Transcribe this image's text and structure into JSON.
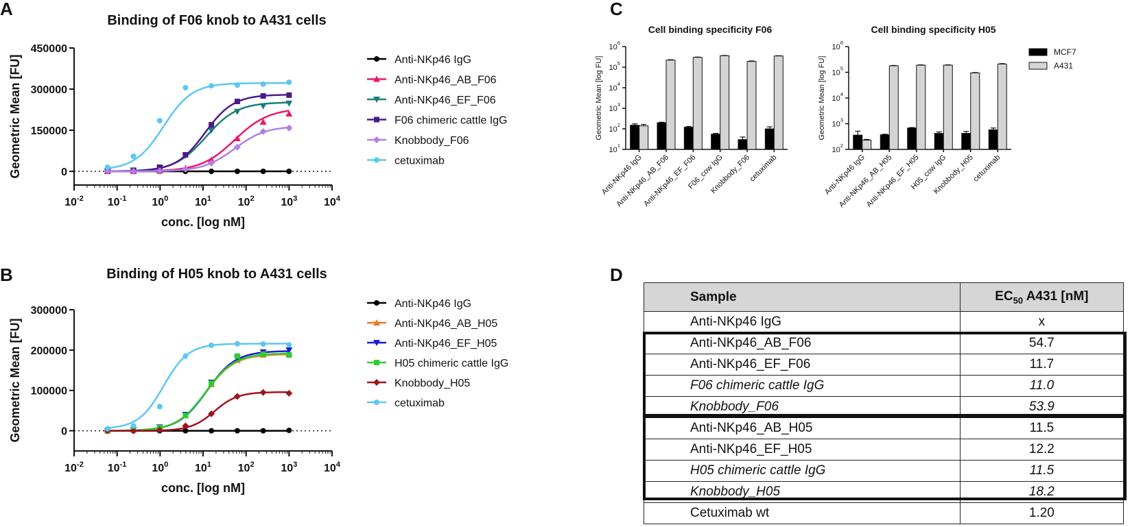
{
  "panels": {
    "A": "A",
    "B": "B",
    "C": "C",
    "D": "D"
  },
  "chart_data": [
    {
      "id": "A",
      "type": "line",
      "title": "Binding of F06 knob to A431 cells",
      "xlabel": "conc. [log nM]",
      "ylabel": "Geometric Mean [FU]",
      "xscale": "log",
      "xlim": [
        0.01,
        10000
      ],
      "ylim": [
        -50000,
        450000
      ],
      "yticks": [
        0,
        150000,
        300000,
        450000
      ],
      "ytick_labels": [
        "0",
        "150000",
        "300000",
        "450000"
      ],
      "xticks": [
        0.01,
        0.1,
        1,
        10,
        100,
        1000,
        10000
      ],
      "xtick_base": "10",
      "xtick_exps": [
        "-2",
        "-1",
        "0",
        "1",
        "2",
        "3",
        "4"
      ],
      "legend_position": "right",
      "x": [
        0.06,
        0.24,
        0.98,
        3.9,
        15.6,
        62.5,
        250,
        1000
      ],
      "series": [
        {
          "name": "Anti-NKp46 IgG",
          "color": "#000000",
          "marker": "circle",
          "values": [
            0,
            0,
            0,
            0,
            0,
            0,
            0,
            0
          ],
          "fit": {
            "bottom": 0,
            "top": 0,
            "ec50": 10,
            "hill": 1
          }
        },
        {
          "name": "Anti-NKp46_AB_F06",
          "color": "#e8196a",
          "marker": "triangle-up",
          "values": [
            0,
            0,
            2000,
            12000,
            42000,
            120000,
            180000,
            210000
          ],
          "fit": {
            "bottom": 0,
            "top": 230000,
            "ec50": 54.7,
            "hill": 1.1
          }
        },
        {
          "name": "Anti-NKp46_EF_F06",
          "color": "#1a7f7a",
          "marker": "triangle-down",
          "values": [
            0,
            3000,
            12000,
            58000,
            150000,
            218000,
            238000,
            248000
          ],
          "fit": {
            "bottom": 0,
            "top": 252000,
            "ec50": 11.7,
            "hill": 1.2
          }
        },
        {
          "name": "F06 chimeric cattle  IgG",
          "color": "#4b1a8a",
          "marker": "square",
          "values": [
            2000,
            4000,
            15000,
            60000,
            170000,
            255000,
            275000,
            278000
          ],
          "fit": {
            "bottom": 0,
            "top": 280000,
            "ec50": 11.0,
            "hill": 1.3
          }
        },
        {
          "name": "Knobbody_F06",
          "color": "#b07fe8",
          "marker": "diamond",
          "values": [
            0,
            0,
            2000,
            8000,
            30000,
            88000,
            145000,
            158000
          ],
          "fit": {
            "bottom": 0,
            "top": 165000,
            "ec50": 53.9,
            "hill": 1.2
          }
        },
        {
          "name": "cetuximab",
          "color": "#5bc8f0",
          "marker": "circle",
          "values": [
            15000,
            55000,
            185000,
            305000,
            312000,
            315000,
            318000,
            325000
          ],
          "fit": {
            "bottom": 5000,
            "top": 322000,
            "ec50": 1.2,
            "hill": 1.3
          }
        }
      ]
    },
    {
      "id": "B",
      "type": "line",
      "title": "Binding of H05 knob to A431 cells",
      "xlabel": "conc. [log nM]",
      "ylabel": "Geometric Mean [FU]",
      "xscale": "log",
      "xlim": [
        0.01,
        10000
      ],
      "ylim": [
        -50000,
        300000
      ],
      "yticks": [
        0,
        100000,
        200000,
        300000
      ],
      "ytick_labels": [
        "0",
        "100000",
        "200000",
        "300000"
      ],
      "xticks": [
        0.01,
        0.1,
        1,
        10,
        100,
        1000,
        10000
      ],
      "xtick_base": "10",
      "xtick_exps": [
        "-2",
        "-1",
        "0",
        "1",
        "2",
        "3",
        "4"
      ],
      "legend_position": "right",
      "x": [
        0.06,
        0.24,
        0.98,
        3.9,
        15.6,
        62.5,
        250,
        1000
      ],
      "series": [
        {
          "name": "Anti-NKp46 IgG",
          "color": "#000000",
          "marker": "circle",
          "values": [
            0,
            0,
            0,
            0,
            0,
            0,
            0,
            1000
          ],
          "fit": {
            "bottom": 0,
            "top": 0,
            "ec50": 10,
            "hill": 1
          }
        },
        {
          "name": "Anti-NKp46_AB_H05",
          "color": "#f07820",
          "marker": "triangle-up",
          "values": [
            0,
            2000,
            8000,
            38000,
            115000,
            175000,
            188000,
            190000
          ],
          "fit": {
            "bottom": 0,
            "top": 190000,
            "ec50": 11.5,
            "hill": 1.3
          }
        },
        {
          "name": "Anti-NKp46_EF_H05",
          "color": "#1a1ad8",
          "marker": "triangle-down",
          "values": [
            0,
            2000,
            9000,
            40000,
            120000,
            180000,
            195000,
            200000
          ],
          "fit": {
            "bottom": 0,
            "top": 198000,
            "ec50": 12.2,
            "hill": 1.3
          }
        },
        {
          "name": "H05 chimeric cattle IgG",
          "color": "#2ecc2e",
          "marker": "square",
          "values": [
            0,
            2000,
            8000,
            38000,
            118000,
            185000,
            190000,
            188000
          ],
          "fit": {
            "bottom": 0,
            "top": 192000,
            "ec50": 11.5,
            "hill": 1.3
          }
        },
        {
          "name": "Knobbody_H05",
          "color": "#a0141e",
          "marker": "diamond",
          "values": [
            0,
            0,
            2000,
            12000,
            42000,
            85000,
            95000,
            93000
          ],
          "fit": {
            "bottom": 0,
            "top": 96000,
            "ec50": 18.2,
            "hill": 1.6
          }
        },
        {
          "name": "cetuximab",
          "color": "#5bc8f0",
          "marker": "circle",
          "values": [
            5000,
            12000,
            60000,
            185000,
            212000,
            216000,
            215000,
            213000
          ],
          "fit": {
            "bottom": 5000,
            "top": 216000,
            "ec50": 1.2,
            "hill": 1.5
          }
        }
      ]
    },
    {
      "id": "C1",
      "type": "bar",
      "title": "Cell binding specificity F06",
      "ylabel": "Geometric Mean [log FU]",
      "yscale": "log",
      "ylim": [
        10,
        1000000
      ],
      "ytick_exps": [
        "1",
        "2",
        "3",
        "4",
        "5",
        "6"
      ],
      "categories": [
        "Anti-NKp46 IgG",
        "Anti-NKp46_AB_F06",
        "Anti-NKp46_EF_F06",
        "F06_cow IgG",
        "Knobbody_F06",
        "cetuximab"
      ],
      "series": [
        {
          "name": "MCF7",
          "color": "#000000",
          "values": [
            150,
            200,
            120,
            55,
            30,
            100
          ],
          "errors": [
            25,
            10,
            10,
            5,
            10,
            25
          ]
        },
        {
          "name": "A431",
          "color": "#d4d4d4",
          "values": [
            140,
            220000,
            300000,
            360000,
            190000,
            350000
          ],
          "errors": [
            25,
            10000,
            10000,
            10000,
            10000,
            10000
          ]
        }
      ]
    },
    {
      "id": "C2",
      "type": "bar",
      "title": "Cell binding specificity H05",
      "ylabel": "Geometric Mean [log FU]",
      "yscale": "log",
      "ylim": [
        100,
        1000000
      ],
      "ytick_exps": [
        "2",
        "3",
        "4",
        "5",
        "6"
      ],
      "legend_position": "right",
      "categories": [
        "Anti-NKp46 IgG",
        "Anti-NKp46_AB_H05",
        "Anti-NKp46_EF_H05",
        "H05_cow IgG",
        "Knobbody_H05",
        "cetuximab"
      ],
      "series": [
        {
          "name": "MCF7",
          "color": "#000000",
          "values": [
            360,
            370,
            680,
            420,
            420,
            580
          ],
          "errors": [
            150,
            20,
            30,
            60,
            80,
            100
          ]
        },
        {
          "name": "A431",
          "color": "#d4d4d4",
          "values": [
            230,
            180000,
            190000,
            190000,
            95000,
            210000
          ],
          "errors": [
            15,
            5000,
            5000,
            5000,
            3000,
            8000
          ]
        }
      ]
    }
  ],
  "table": {
    "headers": {
      "sample": "Sample",
      "ec50_prefix": "EC",
      "ec50_sub": "50",
      "ec50_suffix": " A431 [nM]"
    },
    "rows": [
      {
        "sample": "Anti-NKp46 IgG",
        "value": "x"
      },
      {
        "sample": "Anti-NKp46_AB_F06",
        "value": "54.7"
      },
      {
        "sample": "Anti-NKp46_EF_F06",
        "value": "11.7"
      },
      {
        "sample": "F06 chimeric cattle IgG",
        "value": "11.0"
      },
      {
        "sample": "Knobbody_F06",
        "value": "53.9"
      },
      {
        "sample": "Anti-NKp46_AB_H05",
        "value": "11.5"
      },
      {
        "sample": "Anti-NKp46_EF_H05",
        "value": "12.2"
      },
      {
        "sample": "H05 chimeric cattle IgG",
        "value": "11.5"
      },
      {
        "sample": "Knobbody_H05",
        "value": "18.2"
      },
      {
        "sample": "Cetuximab wt",
        "value": "1.20"
      }
    ]
  }
}
